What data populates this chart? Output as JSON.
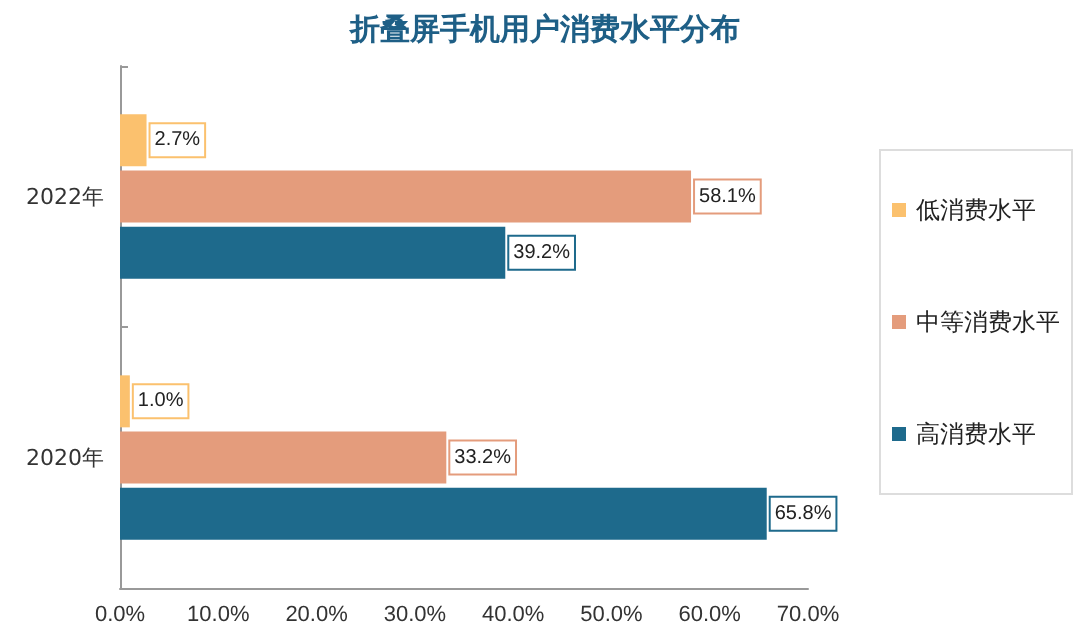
{
  "chart_data": {
    "type": "bar",
    "orientation": "horizontal",
    "title": "折叠屏手机用户消费水平分布",
    "categories": [
      "2022年",
      "2020年"
    ],
    "series": [
      {
        "name": "低消费水平",
        "color": "#fbc16e",
        "values": [
          2.7,
          1.0
        ],
        "value_labels": [
          "2.7%",
          "1.0%"
        ]
      },
      {
        "name": "中等消费水平",
        "color": "#e49c7c",
        "values": [
          58.1,
          33.2
        ],
        "value_labels": [
          "58.1%",
          "33.2%"
        ]
      },
      {
        "name": "高消费水平",
        "color": "#1e6a8c",
        "values": [
          39.2,
          65.8
        ],
        "value_labels": [
          "39.2%",
          "65.8%"
        ]
      }
    ],
    "xlim": [
      0,
      70
    ],
    "xticks": [
      {
        "value": 0,
        "label": "0.0%"
      },
      {
        "value": 10,
        "label": "10.0%"
      },
      {
        "value": 20,
        "label": "20.0%"
      },
      {
        "value": 30,
        "label": "30.0%"
      },
      {
        "value": 40,
        "label": "40.0%"
      },
      {
        "value": 50,
        "label": "50.0%"
      },
      {
        "value": 60,
        "label": "60.0%"
      },
      {
        "value": 70,
        "label": "70.0%"
      }
    ],
    "legend": "right",
    "grid": false
  }
}
